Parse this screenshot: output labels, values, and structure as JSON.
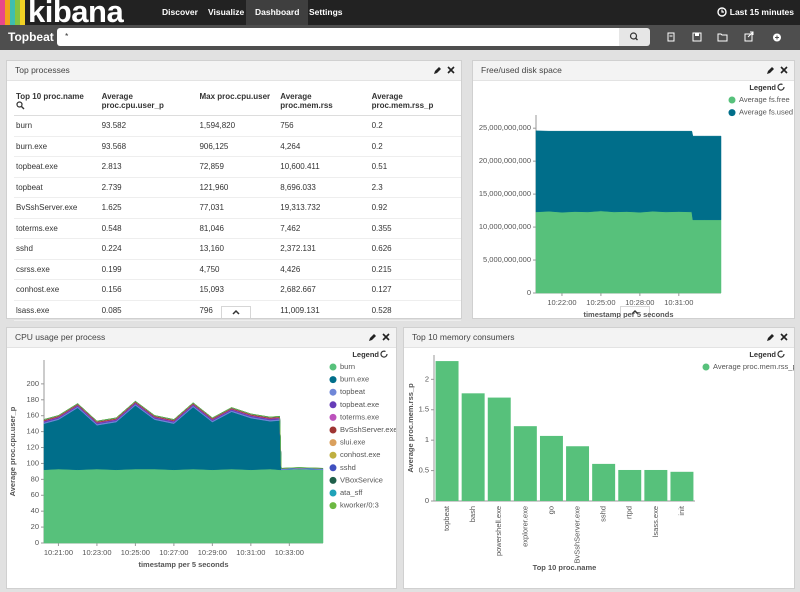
{
  "nav": {
    "brand": "kibana",
    "tabs": [
      "Discover",
      "Visualize",
      "Dashboard",
      "Settings"
    ],
    "active_tab": 2,
    "time_range": "Last 15 minutes"
  },
  "toolbar": {
    "title": "Topbeat",
    "query": "*"
  },
  "table_panel": {
    "title": "Top processes",
    "columns": [
      "Top 10 proc.name",
      "Average proc.cpu.user_p",
      "Max proc.cpu.user",
      "Average proc.mem.rss",
      "Average proc.mem.rss_p"
    ],
    "rows": [
      [
        "burn",
        "93.582",
        "1,594,820",
        "756",
        "0.2"
      ],
      [
        "burn.exe",
        "93.568",
        "906,125",
        "4,264",
        "0.2"
      ],
      [
        "topbeat.exe",
        "2.813",
        "72,859",
        "10,600.411",
        "0.51"
      ],
      [
        "topbeat",
        "2.739",
        "121,960",
        "8,696.033",
        "2.3"
      ],
      [
        "BvSshServer.exe",
        "1.625",
        "77,031",
        "19,313.732",
        "0.92"
      ],
      [
        "toterms.exe",
        "0.548",
        "81,046",
        "7,462",
        "0.355"
      ],
      [
        "sshd",
        "0.224",
        "13,160",
        "2,372.131",
        "0.626"
      ],
      [
        "csrss.exe",
        "0.199",
        "4,750",
        "4,426",
        "0.215"
      ],
      [
        "conhost.exe",
        "0.156",
        "15,093",
        "2,682.667",
        "0.127"
      ],
      [
        "lsass.exe",
        "0.085",
        "796",
        "11,009.131",
        "0.528"
      ]
    ]
  },
  "chart_data": [
    {
      "type": "area",
      "title": "Free/used disk space",
      "legend_title": "Legend",
      "legend": "top-right",
      "stacked": true,
      "x_label": "timestamp per 5 seconds",
      "x": [
        "10:20:00",
        "10:21:00",
        "10:22:00",
        "10:23:00",
        "10:24:00",
        "10:25:00",
        "10:26:00",
        "10:27:00",
        "10:28:00",
        "10:29:00",
        "10:30:00",
        "10:31:00",
        "10:32:00",
        "10:32:05",
        "10:33:00",
        "10:34:15"
      ],
      "xlim": [
        "10:20:00",
        "10:34:15"
      ],
      "xticks": [
        "10:22:00",
        "10:25:00",
        "10:28:00",
        "10:31:00"
      ],
      "ylim": [
        0,
        27000000000
      ],
      "yticks": [
        0,
        {
          "value": 5000000000,
          "label": "5,000,000,000"
        },
        {
          "value": 10000000000,
          "label": "10,000,000,000"
        },
        {
          "value": 15000000000,
          "label": "15,000,000,000"
        },
        {
          "value": 20000000000,
          "label": "20,000,000,000"
        },
        {
          "value": 25000000000,
          "label": "25,000,000,000"
        }
      ],
      "series": [
        {
          "name": "Average fs.free",
          "color": "#57c17b",
          "values": [
            12300000000,
            12400000000,
            12250000000,
            12350000000,
            12300000000,
            12450000000,
            12300000000,
            12350000000,
            12250000000,
            12400000000,
            12300000000,
            12350000000,
            12300000000,
            11100000000,
            11100000000,
            11100000000
          ]
        },
        {
          "name": "Average fs.used",
          "color": "#006e8a",
          "values": [
            12300000000,
            12150000000,
            12300000000,
            12200000000,
            12250000000,
            12100000000,
            12250000000,
            12200000000,
            12300000000,
            12150000000,
            12250000000,
            12200000000,
            12250000000,
            12700000000,
            12700000000,
            12700000000
          ]
        }
      ]
    },
    {
      "type": "area",
      "title": "CPU usage per process",
      "legend_title": "Legend",
      "legend": "top-right",
      "stacked": true,
      "x_label": "timestamp per 5 seconds",
      "y_label": "Average proc.cpu.user_p",
      "x": [
        "10:20:15",
        "10:21:00",
        "10:22:00",
        "10:23:00",
        "10:24:00",
        "10:25:00",
        "10:26:00",
        "10:27:00",
        "10:28:00",
        "10:29:00",
        "10:30:00",
        "10:31:00",
        "10:32:00",
        "10:32:30",
        "10:32:35",
        "10:33:30",
        "10:34:45"
      ],
      "xlim": [
        "10:20:15",
        "10:34:45"
      ],
      "xticks": [
        "10:21:00",
        "10:23:00",
        "10:25:00",
        "10:27:00",
        "10:29:00",
        "10:31:00",
        "10:33:00"
      ],
      "ylim": [
        0,
        230
      ],
      "yticks": [
        0,
        20,
        40,
        60,
        80,
        100,
        120,
        140,
        160,
        180,
        200
      ],
      "series": [
        {
          "name": "burn",
          "color": "#57c17b",
          "values": [
            92,
            93,
            92,
            93,
            92,
            93,
            93,
            92,
            93,
            92,
            93,
            92,
            93,
            92,
            92,
            93,
            92
          ]
        },
        {
          "name": "burn.exe",
          "color": "#006e8a",
          "values": [
            58,
            62,
            78,
            55,
            60,
            80,
            62,
            58,
            78,
            60,
            72,
            65,
            60,
            62,
            0,
            0,
            0
          ]
        },
        {
          "name": "topbeat",
          "color": "#6f87d8",
          "values": [
            1.5,
            1.5,
            1.5,
            1.5,
            1.5,
            1.5,
            1.5,
            1.5,
            1.5,
            1.5,
            1.5,
            1.5,
            1.5,
            1.5,
            1.5,
            1.5,
            1.5
          ]
        },
        {
          "name": "topbeat.exe",
          "color": "#663db8",
          "values": [
            1.5,
            1.5,
            1.5,
            1.5,
            1.5,
            1.5,
            1.5,
            1.5,
            1.5,
            1.5,
            1.5,
            1.5,
            1.5,
            1.5,
            0,
            0,
            0
          ]
        },
        {
          "name": "toterms.exe",
          "color": "#bc52bc",
          "values": [
            0.5,
            0.5,
            0.5,
            0.5,
            0.5,
            0.5,
            0.5,
            0.5,
            0.5,
            0.5,
            0.5,
            0.5,
            0.5,
            0.5,
            0,
            0,
            0
          ]
        },
        {
          "name": "BvSshServer.exe",
          "color": "#9e3533",
          "values": [
            1,
            1,
            1,
            1,
            1,
            1,
            1,
            1,
            1,
            1,
            1,
            1,
            1,
            1,
            0,
            0,
            0
          ]
        },
        {
          "name": "slui.exe",
          "color": "#daa05d",
          "values": [
            0.2,
            0.2,
            0.2,
            0.2,
            0.2,
            0.2,
            0.2,
            0.2,
            0.2,
            0.2,
            0.2,
            0.2,
            0.2,
            0.2,
            0,
            0,
            0
          ]
        },
        {
          "name": "conhost.exe",
          "color": "#bfaf40",
          "values": [
            0.2,
            0.2,
            0.2,
            0.2,
            0.2,
            0.2,
            0.2,
            0.2,
            0.2,
            0.2,
            0.2,
            0.2,
            0.2,
            0.2,
            0,
            0,
            0
          ]
        },
        {
          "name": "sshd",
          "color": "#4050bf",
          "values": [
            0.2,
            0.2,
            0.2,
            0.2,
            0.2,
            0.2,
            0.2,
            0.2,
            0.2,
            0.2,
            0.2,
            0.2,
            0.2,
            0.2,
            0.2,
            0.2,
            0.2
          ]
        },
        {
          "name": "VBoxService",
          "color": "#1f5f4a",
          "values": [
            0.1,
            0.1,
            0.1,
            0.1,
            0.1,
            0.1,
            0.1,
            0.1,
            0.1,
            0.1,
            0.1,
            0.1,
            0.1,
            0.1,
            0.1,
            0.1,
            0.1
          ]
        },
        {
          "name": "ata_sff",
          "color": "#1fa2b8",
          "values": [
            0.1,
            0.1,
            0.1,
            0.1,
            0.1,
            0.1,
            0.1,
            0.1,
            0.1,
            0.1,
            0.1,
            0.1,
            0.1,
            0.1,
            0.1,
            0.1,
            0.1
          ]
        },
        {
          "name": "kworker/0:3",
          "color": "#6cb842",
          "values": [
            0.1,
            0.1,
            0.1,
            0.1,
            0.1,
            0.1,
            0.1,
            0.1,
            0.1,
            0.1,
            0.1,
            0.1,
            0.1,
            0.1,
            0.1,
            0.1,
            0.1
          ]
        }
      ]
    },
    {
      "type": "bar",
      "title": "Top 10 memory consumers",
      "legend_title": "Legend",
      "legend": "top-right",
      "x_label": "Top 10 proc.name",
      "y_label": "Average proc.mem.rss_p",
      "categories": [
        "topbeat",
        "bash",
        "powershell.exe",
        "explorer.exe",
        "go",
        "BvSshServer.exe",
        "sshd",
        "rtpd",
        "lsass.exe",
        "init"
      ],
      "ylim": [
        0,
        2.4
      ],
      "yticks": [
        0,
        0.5,
        1,
        1.5,
        2
      ],
      "series": [
        {
          "name": "Average proc.mem.rss_p",
          "color": "#57c17b",
          "values": [
            2.3,
            1.77,
            1.7,
            1.23,
            1.07,
            0.9,
            0.61,
            0.51,
            0.51,
            0.48
          ]
        }
      ]
    }
  ]
}
